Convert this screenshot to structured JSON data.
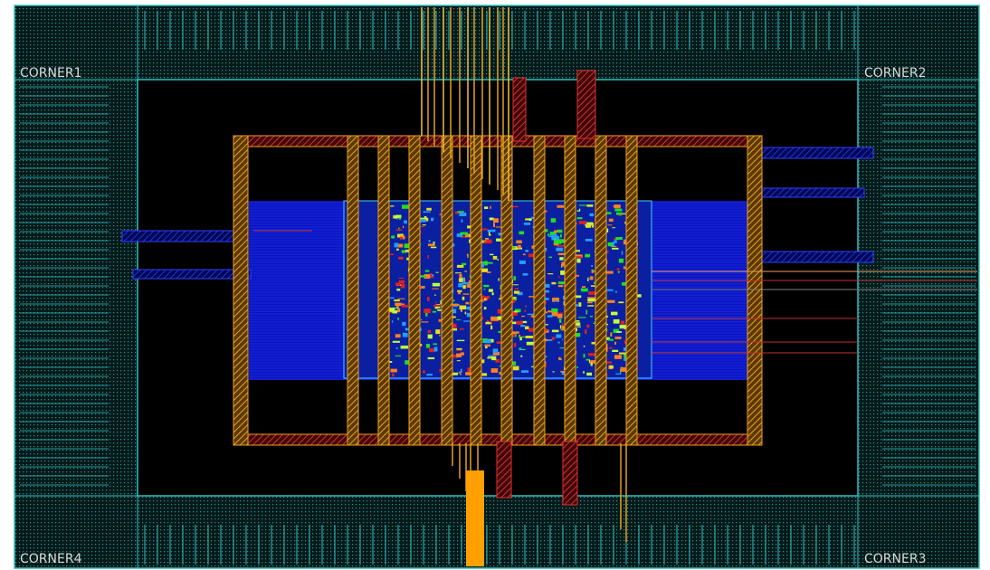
{
  "corners": {
    "top_left": "CORNER1",
    "top_right": "CORNER2",
    "bottom_right": "CORNER3",
    "bottom_left": "CORNER4"
  }
}
